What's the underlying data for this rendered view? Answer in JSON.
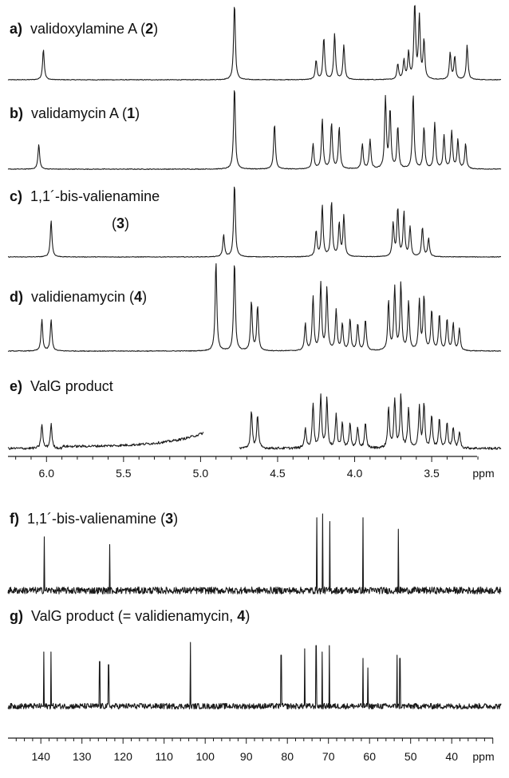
{
  "chart_data": [
    {
      "type": "line",
      "nucleus": "1H NMR",
      "xlabel": "ppm",
      "xlim": [
        6.25,
        3.05
      ],
      "x_reversed": true,
      "tick_labels": [
        "6.0",
        "5.5",
        "5.0",
        "4.5",
        "4.0",
        "3.5"
      ],
      "tick_values": [
        6.0,
        5.5,
        5.0,
        4.5,
        4.0,
        3.5
      ],
      "series": [
        {
          "panel": "a)",
          "label_pre": "validoxylamine A (",
          "label_num": "2",
          "label_post": ")",
          "peaks": [
            [
              6.02,
              0.4
            ],
            [
              4.78,
              1.0
            ],
            [
              4.25,
              0.25
            ],
            [
              4.2,
              0.55
            ],
            [
              4.13,
              0.6
            ],
            [
              4.07,
              0.45
            ],
            [
              3.72,
              0.2
            ],
            [
              3.68,
              0.25
            ],
            [
              3.65,
              0.35
            ],
            [
              3.61,
              0.98
            ],
            [
              3.58,
              0.8
            ],
            [
              3.55,
              0.5
            ],
            [
              3.38,
              0.35
            ],
            [
              3.35,
              0.3
            ],
            [
              3.27,
              0.45
            ]
          ]
        },
        {
          "panel": "b)",
          "label_pre": "validamycin A (",
          "label_num": "1",
          "label_post": ")",
          "peaks": [
            [
              6.05,
              0.3
            ],
            [
              4.78,
              1.0
            ],
            [
              4.52,
              0.55
            ],
            [
              4.27,
              0.3
            ],
            [
              4.21,
              0.6
            ],
            [
              4.15,
              0.55
            ],
            [
              4.1,
              0.5
            ],
            [
              3.95,
              0.3
            ],
            [
              3.9,
              0.35
            ],
            [
              3.8,
              0.85
            ],
            [
              3.77,
              0.7
            ],
            [
              3.72,
              0.5
            ],
            [
              3.62,
              0.9
            ],
            [
              3.55,
              0.5
            ],
            [
              3.48,
              0.55
            ],
            [
              3.42,
              0.4
            ],
            [
              3.37,
              0.45
            ],
            [
              3.33,
              0.35
            ],
            [
              3.28,
              0.3
            ]
          ]
        },
        {
          "panel": "c)",
          "label_pre": "1,1´-bis-valienamine",
          "label_num": "3",
          "label_post": "",
          "peaks": [
            [
              5.97,
              0.5
            ],
            [
              4.85,
              0.3
            ],
            [
              4.78,
              1.0
            ],
            [
              4.25,
              0.35
            ],
            [
              4.21,
              0.7
            ],
            [
              4.15,
              0.75
            ],
            [
              4.1,
              0.45
            ],
            [
              4.07,
              0.55
            ],
            [
              3.75,
              0.45
            ],
            [
              3.72,
              0.65
            ],
            [
              3.68,
              0.6
            ],
            [
              3.64,
              0.4
            ],
            [
              3.56,
              0.4
            ],
            [
              3.52,
              0.25
            ]
          ]
        },
        {
          "panel": "d)",
          "label_pre": "validienamycin (",
          "label_num": "4",
          "label_post": ")",
          "peaks": [
            [
              6.03,
              0.35
            ],
            [
              5.97,
              0.35
            ],
            [
              4.9,
              1.0
            ],
            [
              4.78,
              1.0
            ],
            [
              4.67,
              0.55
            ],
            [
              4.63,
              0.5
            ],
            [
              4.32,
              0.3
            ],
            [
              4.27,
              0.6
            ],
            [
              4.22,
              0.75
            ],
            [
              4.18,
              0.7
            ],
            [
              4.12,
              0.45
            ],
            [
              4.08,
              0.3
            ],
            [
              4.03,
              0.35
            ],
            [
              3.98,
              0.3
            ],
            [
              3.93,
              0.35
            ],
            [
              3.78,
              0.55
            ],
            [
              3.74,
              0.7
            ],
            [
              3.7,
              0.75
            ],
            [
              3.65,
              0.55
            ],
            [
              3.58,
              0.55
            ],
            [
              3.55,
              0.6
            ],
            [
              3.5,
              0.45
            ],
            [
              3.45,
              0.4
            ],
            [
              3.4,
              0.35
            ],
            [
              3.36,
              0.3
            ],
            [
              3.32,
              0.25
            ]
          ]
        },
        {
          "panel": "e)",
          "label_pre": "ValG product",
          "label_num": "",
          "label_post": "",
          "gap_ppm": [
            4.98,
            4.75
          ],
          "peaks": [
            [
              6.03,
              0.3
            ],
            [
              5.97,
              0.3
            ],
            [
              4.67,
              0.45
            ],
            [
              4.63,
              0.4
            ],
            [
              4.32,
              0.25
            ],
            [
              4.27,
              0.55
            ],
            [
              4.22,
              0.65
            ],
            [
              4.18,
              0.6
            ],
            [
              4.12,
              0.4
            ],
            [
              4.08,
              0.3
            ],
            [
              4.03,
              0.3
            ],
            [
              3.98,
              0.25
            ],
            [
              3.93,
              0.3
            ],
            [
              3.78,
              0.5
            ],
            [
              3.74,
              0.6
            ],
            [
              3.7,
              0.65
            ],
            [
              3.65,
              0.5
            ],
            [
              3.58,
              0.5
            ],
            [
              3.55,
              0.55
            ],
            [
              3.5,
              0.4
            ],
            [
              3.45,
              0.35
            ],
            [
              3.4,
              0.3
            ],
            [
              3.36,
              0.25
            ],
            [
              3.32,
              0.2
            ]
          ]
        }
      ]
    },
    {
      "type": "line",
      "nucleus": "13C NMR",
      "xlabel": "ppm",
      "xlim": [
        148,
        28
      ],
      "x_reversed": true,
      "tick_labels": [
        "140",
        "130",
        "120",
        "110",
        "100",
        "90",
        "80",
        "70",
        "60",
        "50",
        "40"
      ],
      "tick_values": [
        140,
        130,
        120,
        110,
        100,
        90,
        80,
        70,
        60,
        50,
        40
      ],
      "series": [
        {
          "panel": "f)",
          "label_pre": "1,1´-bis-valienamine (",
          "label_num": "3",
          "label_post": ")",
          "peaks": [
            [
              139.2,
              0.7
            ],
            [
              123.2,
              0.6
            ],
            [
              72.8,
              0.95
            ],
            [
              71.4,
              1.0
            ],
            [
              69.7,
              0.9
            ],
            [
              61.6,
              0.95
            ],
            [
              53.0,
              0.8
            ]
          ]
        },
        {
          "panel": "g)",
          "label_pre": "ValG product (= validienamycin, ",
          "label_num": "4",
          "label_post": ")",
          "peaks": [
            [
              139.3,
              0.85
            ],
            [
              137.5,
              0.85
            ],
            [
              125.7,
              0.7
            ],
            [
              123.5,
              0.65
            ],
            [
              103.6,
              1.0
            ],
            [
              81.5,
              0.8
            ],
            [
              75.8,
              0.9
            ],
            [
              73.0,
              0.95
            ],
            [
              71.5,
              0.85
            ],
            [
              69.8,
              0.95
            ],
            [
              61.6,
              0.75
            ],
            [
              60.4,
              0.6
            ],
            [
              53.3,
              0.8
            ],
            [
              52.6,
              0.75
            ]
          ]
        }
      ]
    }
  ]
}
